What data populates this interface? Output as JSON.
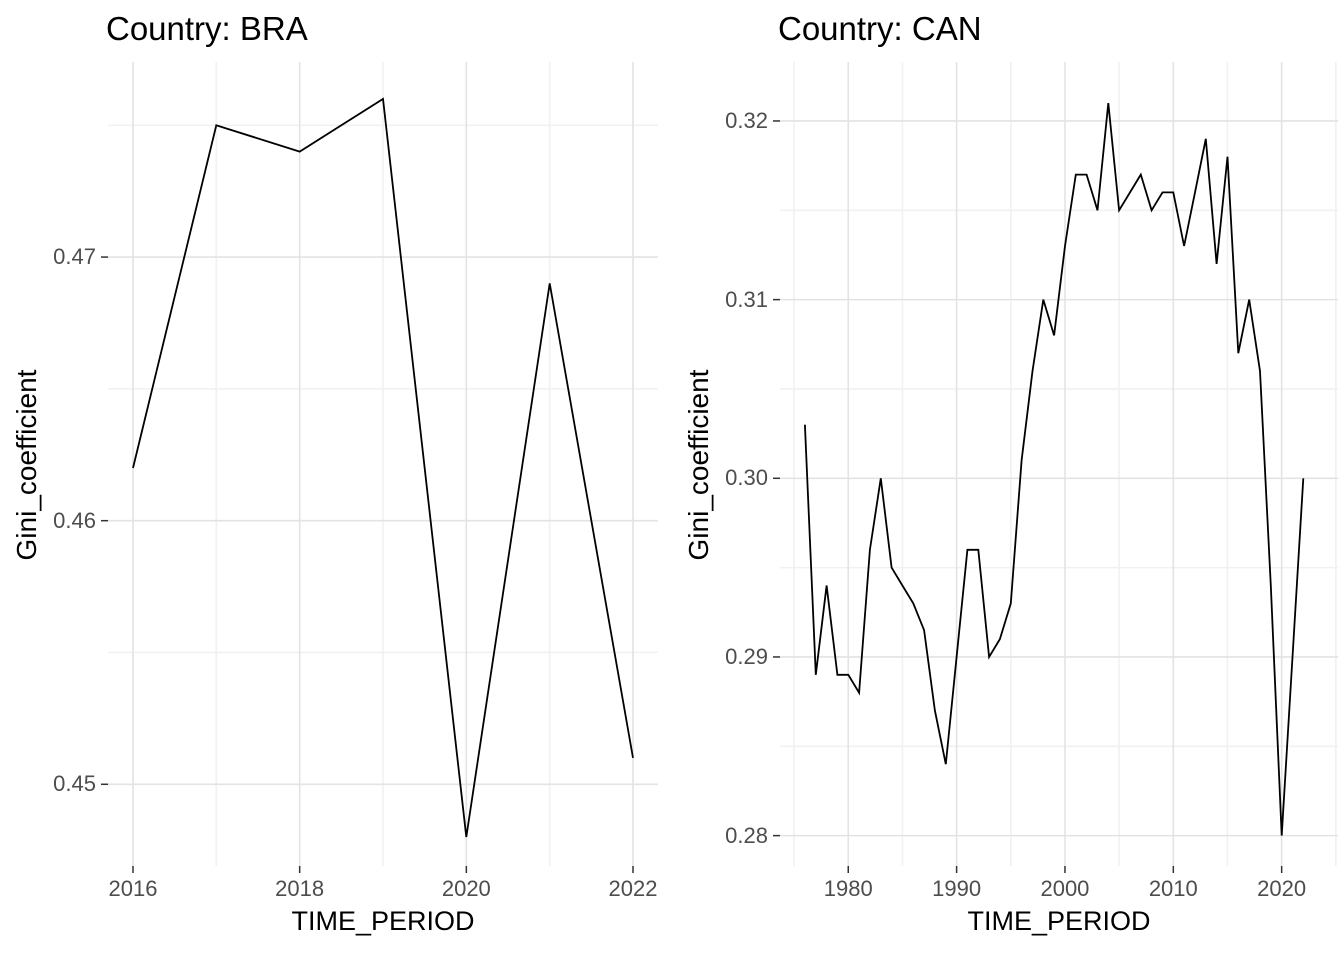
{
  "figure": {
    "background": "#FFFFFF",
    "line_color": "#000000",
    "grid_major_color": "#E3E3E3",
    "grid_minor_color": "#F1F1F1",
    "tick_label_color": "#4D4D4D",
    "tick_mark_color": "#333333",
    "title_color": "#000000"
  },
  "chart_data": [
    {
      "type": "line",
      "title": "Country: BRA",
      "xlabel": "TIME_PERIOD",
      "ylabel": "Gini_coefficient",
      "legend": "none",
      "grid": true,
      "x": [
        2016,
        2017,
        2018,
        2019,
        2020,
        2021,
        2022
      ],
      "values": [
        0.462,
        0.475,
        0.474,
        0.476,
        0.448,
        0.469,
        0.451
      ],
      "xlim": [
        2015.7,
        2022.3
      ],
      "ylim": [
        0.4469,
        0.4774
      ],
      "x_ticks": [
        2016,
        2018,
        2020,
        2022
      ],
      "x_tick_labels": [
        "2016",
        "2018",
        "2020",
        "2022"
      ],
      "x_minor": [
        2017,
        2019,
        2021
      ],
      "y_ticks": [
        0.45,
        0.46,
        0.47
      ],
      "y_tick_labels": [
        "0.45",
        "0.46",
        "0.47"
      ],
      "y_minor": [
        0.455,
        0.465,
        0.475
      ]
    },
    {
      "type": "line",
      "title": "Country: CAN",
      "xlabel": "TIME_PERIOD",
      "ylabel": "Gini_coefficient",
      "legend": "none",
      "grid": true,
      "x": [
        1976,
        1977,
        1978,
        1979,
        1980,
        1981,
        1982,
        1983,
        1984,
        1985,
        1986,
        1987,
        1988,
        1989,
        1990,
        1991,
        1992,
        1993,
        1994,
        1995,
        1996,
        1997,
        1998,
        1999,
        2000,
        2001,
        2002,
        2003,
        2004,
        2005,
        2006,
        2007,
        2008,
        2009,
        2010,
        2011,
        2012,
        2013,
        2014,
        2015,
        2016,
        2017,
        2018,
        2019,
        2020,
        2021,
        2022
      ],
      "values": [
        0.303,
        0.289,
        0.294,
        0.289,
        0.289,
        0.288,
        0.296,
        0.3,
        0.295,
        0.294,
        0.293,
        0.2915,
        0.287,
        0.284,
        0.29,
        0.296,
        0.296,
        0.29,
        0.291,
        0.293,
        0.301,
        0.306,
        0.31,
        0.308,
        0.313,
        0.317,
        0.317,
        0.315,
        0.321,
        0.315,
        0.316,
        0.317,
        0.315,
        0.316,
        0.316,
        0.313,
        0.316,
        0.319,
        0.312,
        0.318,
        0.307,
        0.31,
        0.306,
        0.294,
        0.28,
        0.29,
        0.3
      ],
      "xlim": [
        1973.7,
        2025.2
      ],
      "ylim": [
        0.2783,
        0.3233
      ],
      "x_ticks": [
        1980,
        1990,
        2000,
        2010,
        2020
      ],
      "x_tick_labels": [
        "1980",
        "1990",
        "2000",
        "2010",
        "2020"
      ],
      "x_minor": [
        1975,
        1985,
        1995,
        2005,
        2015,
        2025
      ],
      "y_ticks": [
        0.28,
        0.29,
        0.3,
        0.31,
        0.32
      ],
      "y_tick_labels": [
        "0.28",
        "0.29",
        "0.30",
        "0.31",
        "0.32"
      ],
      "y_minor": [
        0.285,
        0.295,
        0.305,
        0.315
      ]
    }
  ]
}
